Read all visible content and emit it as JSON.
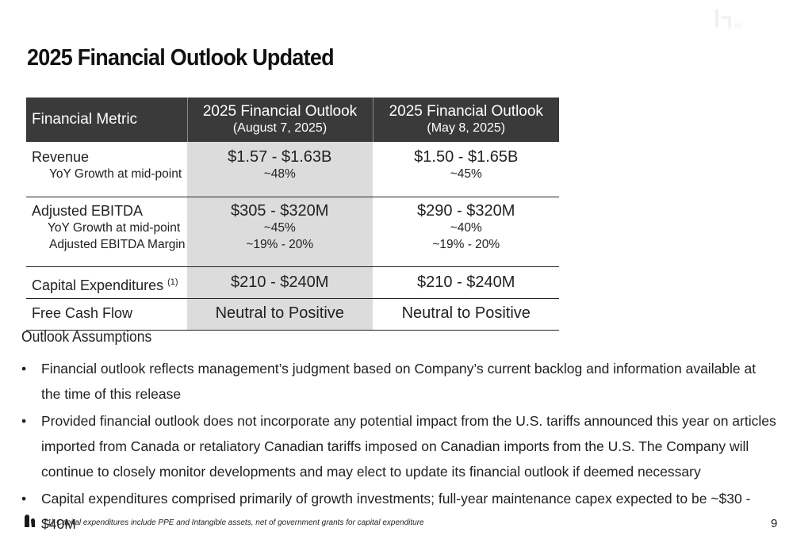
{
  "slide": {
    "title": "2025 Financial Outlook Updated",
    "page_number": "9"
  },
  "table": {
    "headers": {
      "metric": "Financial Metric",
      "col1_title": "2025 Financial Outlook",
      "col1_date": "(August 7, 2025)",
      "col2_title": "2025 Financial Outlook",
      "col2_date": "(May 8, 2025)"
    },
    "rows": {
      "revenue": {
        "label": "Revenue",
        "sub1": "YoY Growth at mid-point",
        "aug": "$1.57 - $1.63B",
        "aug_growth": "~48%",
        "may": "$1.50 - $1.65B",
        "may_growth": "~45%"
      },
      "ebitda": {
        "label": "Adjusted EBITDA",
        "sub1": "YoY Growth at mid-point",
        "sub2": "Adjusted EBITDA Margin",
        "aug": "$305 - $320M",
        "aug_growth": "~45%",
        "aug_margin": "~19% - 20%",
        "may": "$290 - $320M",
        "may_growth": "~40%",
        "may_margin": "~19% - 20%"
      },
      "capex": {
        "label": "Capital Expenditures",
        "footnote_ref": "(1)",
        "aug": "$210 - $240M",
        "may": "$210 - $240M"
      },
      "fcf": {
        "label": "Free Cash Flow",
        "aug": "Neutral to Positive",
        "may": "Neutral to Positive"
      }
    }
  },
  "assumptions": {
    "title": "Outlook Assumptions",
    "bullet_symbol": "•",
    "items": [
      "Financial outlook reflects management’s judgment based on Company’s current backlog and information available at the time of this release",
      "Provided financial outlook does not incorporate any potential impact from the U.S. tariffs announced this year on articles imported from Canada or retaliatory Canadian tariffs imposed on Canadian imports from the U.S. The Company will continue to closely monitor developments and may elect to update its financial outlook if deemed necessary",
      "Capital expenditures comprised primarily of growth investments; full-year maintenance capex expected to be ~$30 - $40M"
    ]
  },
  "footnote": "(1) Capital expenditures include PPE and Intangible assets, net of government grants for capital expenditure",
  "icons": {
    "watermark": "company-watermark-logo",
    "footer_logo": "company-logo-icon"
  },
  "colors": {
    "header_bg": "#3b3a3a",
    "highlight_col": "#dcdcdc",
    "text": "#222222"
  }
}
